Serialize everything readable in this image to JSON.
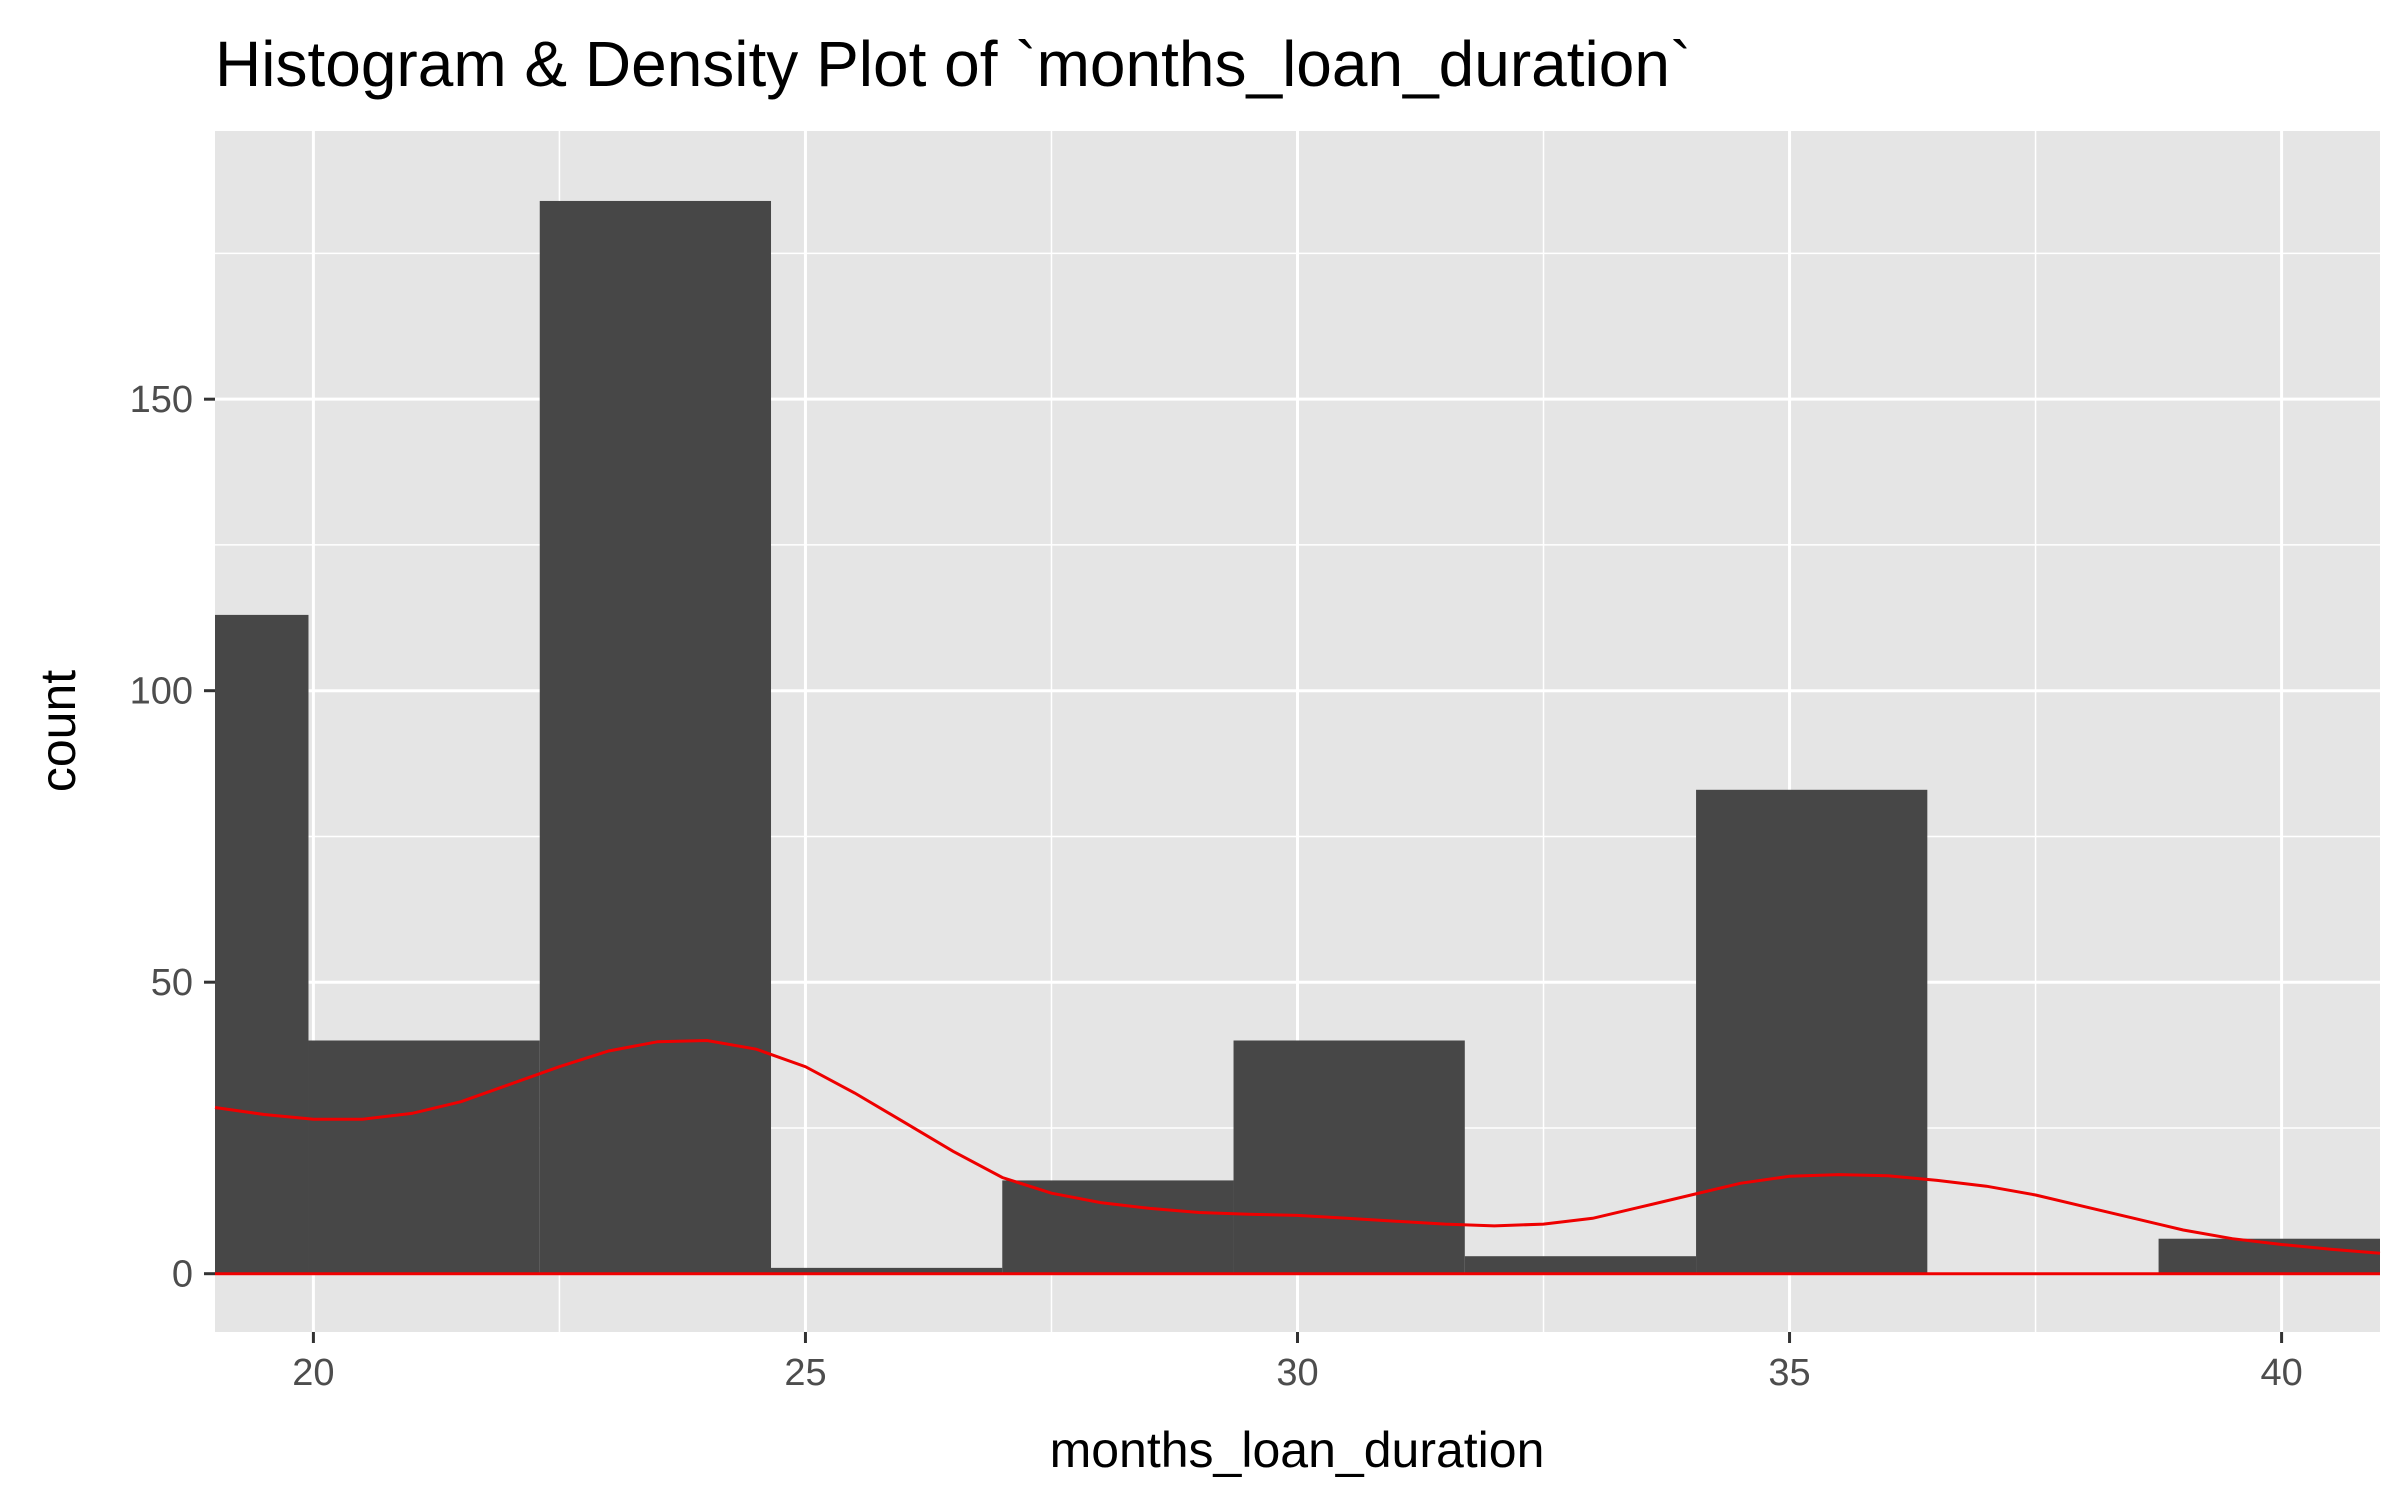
{
  "chart_data": {
    "type": "bar",
    "title": "Histogram & Density Plot of `months_loan_duration`",
    "xlabel": "months_loan_duration",
    "ylabel": "count",
    "xlim": [
      19,
      41
    ],
    "ylim": [
      -10,
      196
    ],
    "x_ticks": [
      20,
      25,
      30,
      35,
      40
    ],
    "y_ticks": [
      0,
      50,
      100,
      150
    ],
    "grid": true,
    "legend": "none",
    "colors": {
      "panel": "#e5e5e5",
      "grid": "#ffffff",
      "bar": "#474747",
      "density": "#ee0000",
      "tick": "#333333"
    },
    "bins": [
      {
        "x0": 17.6,
        "x1": 19.95,
        "count": 113
      },
      {
        "x0": 19.95,
        "x1": 22.3,
        "count": 40
      },
      {
        "x0": 22.3,
        "x1": 24.65,
        "count": 184
      },
      {
        "x0": 24.65,
        "x1": 27.0,
        "count": 1
      },
      {
        "x0": 27.0,
        "x1": 29.35,
        "count": 16
      },
      {
        "x0": 29.35,
        "x1": 31.7,
        "count": 40
      },
      {
        "x0": 31.7,
        "x1": 34.05,
        "count": 3
      },
      {
        "x0": 34.05,
        "x1": 36.4,
        "count": 83
      },
      {
        "x0": 36.4,
        "x1": 38.75,
        "count": 0
      },
      {
        "x0": 38.75,
        "x1": 41.1,
        "count": 6
      }
    ],
    "density_curve": {
      "x": [
        19,
        19.5,
        20,
        20.5,
        21,
        21.5,
        22,
        22.5,
        23,
        23.5,
        24,
        24.5,
        25,
        25.5,
        26,
        26.5,
        27,
        27.5,
        28,
        28.5,
        29,
        29.5,
        30,
        30.5,
        31,
        31.5,
        32,
        32.5,
        33,
        33.5,
        34,
        34.5,
        35,
        35.5,
        36,
        36.5,
        37,
        37.5,
        38,
        38.5,
        39,
        39.5,
        40,
        40.5,
        41
      ],
      "y": [
        28.5,
        27.3,
        26.5,
        26.5,
        27.5,
        29.5,
        32.5,
        35.5,
        38.2,
        39.8,
        40.0,
        38.5,
        35.5,
        31.0,
        26.0,
        21.0,
        16.5,
        13.8,
        12.2,
        11.2,
        10.5,
        10.2,
        10.0,
        9.5,
        9.0,
        8.5,
        8.2,
        8.5,
        9.5,
        11.5,
        13.5,
        15.5,
        16.7,
        17.0,
        16.8,
        16.0,
        15.0,
        13.5,
        11.5,
        9.5,
        7.5,
        6.0,
        5.0,
        4.2,
        3.5
      ]
    }
  }
}
